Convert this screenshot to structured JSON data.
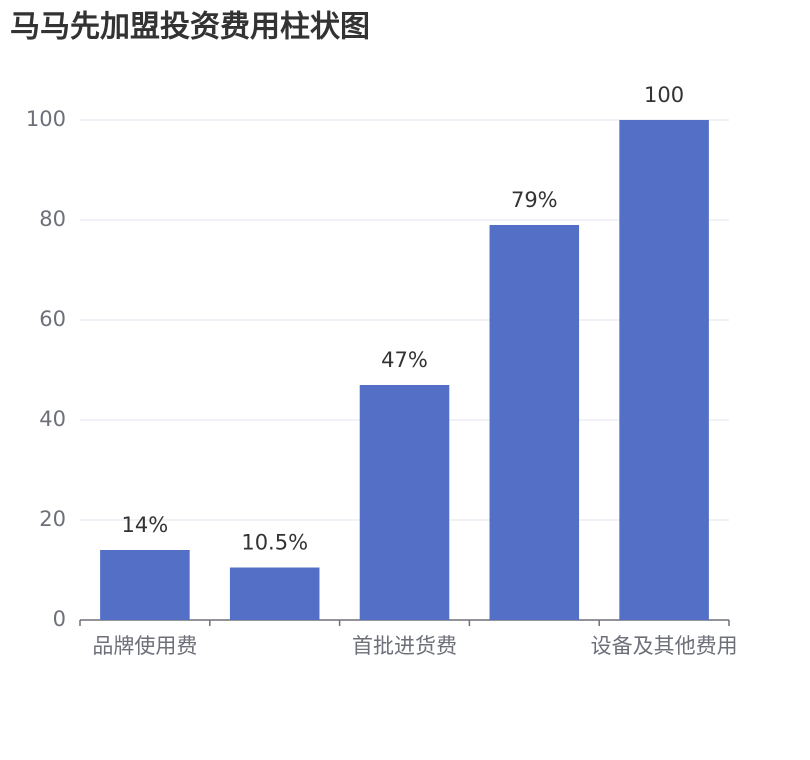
{
  "chart_data": {
    "type": "bar",
    "title": "马马先加盟投资费用柱状图",
    "categories": [
      "品牌使用费",
      null,
      "首批进货费",
      null,
      "设备及其他费用"
    ],
    "values": [
      14,
      10.5,
      47,
      79,
      100
    ],
    "value_labels": [
      "14%",
      "10.5%",
      "47%",
      "79%",
      "100"
    ],
    "color": "#5470c6",
    "ylim": [
      0,
      100
    ],
    "yticks": [
      0,
      20,
      40,
      60,
      80,
      100
    ],
    "grid": true
  }
}
